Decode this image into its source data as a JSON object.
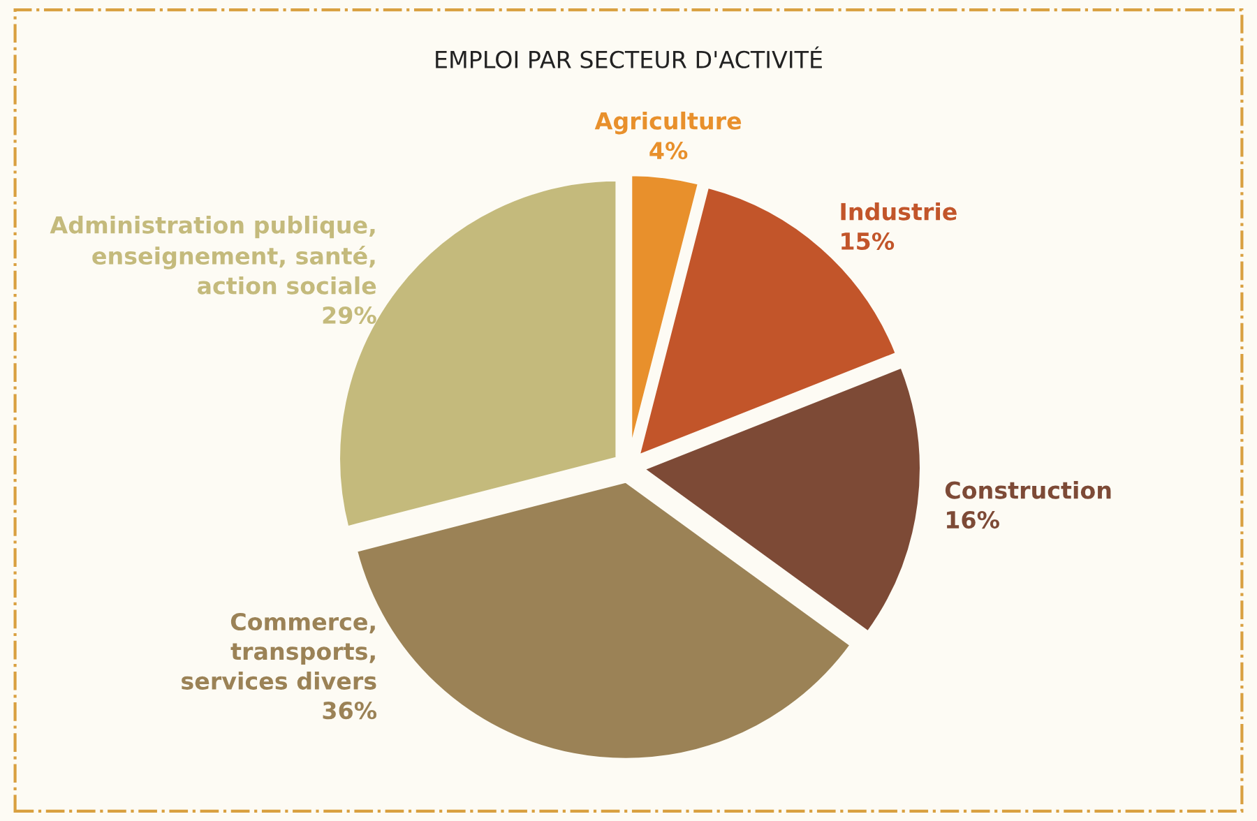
{
  "chart_data": {
    "type": "pie",
    "title": "EMPLOI PAR SECTEUR D'ACTIVITÉ",
    "categories": [
      "Agriculture",
      "Industrie",
      "Construction",
      "Commerce,\ntransports,\nservices divers",
      "Administration publique,\nenseignement, santé,\naction sociale"
    ],
    "values": [
      4,
      15,
      16,
      36,
      29
    ],
    "colors": [
      "#e8902c",
      "#c2552a",
      "#7d4a36",
      "#9b8256",
      "#c4ba7c"
    ],
    "value_labels": [
      "4%",
      "15%",
      "16%",
      "36%",
      "29%"
    ],
    "legend": false
  }
}
